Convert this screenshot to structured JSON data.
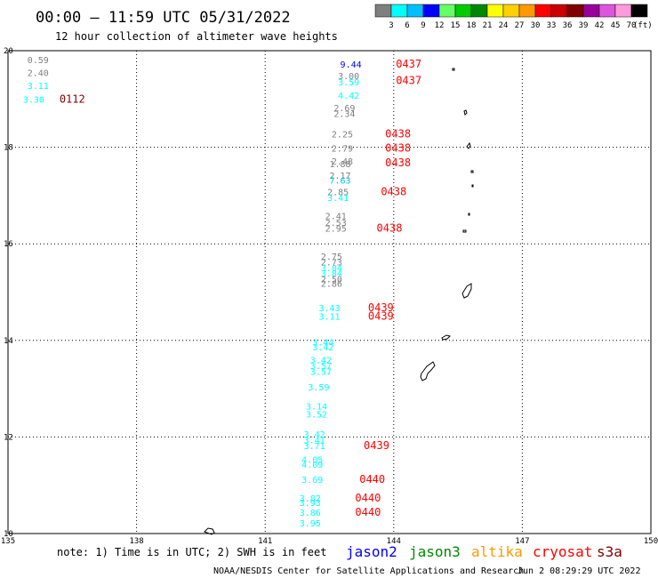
{
  "header": {
    "title": "00:00 – 11:59 UTC 05/31/2022",
    "subtitle": "12 hour collection of altimeter wave heights"
  },
  "legend": {
    "unit": "(ft)",
    "bins": [
      {
        "label": "3",
        "color": "#7f7f7f"
      },
      {
        "label": "6",
        "color": "#00ffff"
      },
      {
        "label": "9",
        "color": "#00bfff"
      },
      {
        "label": "12",
        "color": "#0000ff"
      },
      {
        "label": "15",
        "color": "#66ff66"
      },
      {
        "label": "18",
        "color": "#00cc00"
      },
      {
        "label": "21",
        "color": "#008800"
      },
      {
        "label": "24",
        "color": "#ffff00"
      },
      {
        "label": "27",
        "color": "#ffd000"
      },
      {
        "label": "30",
        "color": "#ff9900"
      },
      {
        "label": "33",
        "color": "#ff0000"
      },
      {
        "label": "36",
        "color": "#cc0000"
      },
      {
        "label": "39",
        "color": "#800000"
      },
      {
        "label": "42",
        "color": "#990099"
      },
      {
        "label": "45",
        "color": "#dd55dd"
      },
      {
        "label": "70",
        "color": "#ff99dd"
      }
    ],
    "last_color": "#000000"
  },
  "chart_data": {
    "type": "scatter",
    "xlim": [
      135,
      150
    ],
    "ylim": [
      10,
      20
    ],
    "x_ticks": [
      "135",
      "138",
      "141",
      "144",
      "147",
      "150"
    ],
    "y_ticks": [
      "10",
      "12",
      "14",
      "16",
      "18",
      "20"
    ],
    "grid": true,
    "points": [
      {
        "x": 135.45,
        "y": 19.82,
        "v": "0.59",
        "c": "#7f7f7f"
      },
      {
        "x": 135.45,
        "y": 19.55,
        "v": "2.40",
        "c": "#7f7f7f"
      },
      {
        "x": 135.45,
        "y": 19.28,
        "v": "3.11",
        "c": "#00ffff"
      },
      {
        "x": 135.35,
        "y": 19.0,
        "v": "3.30",
        "c": "#00ffff"
      },
      {
        "x": 142.75,
        "y": 19.72,
        "v": "9.44",
        "c": "#0000ff"
      },
      {
        "x": 142.7,
        "y": 19.48,
        "v": "3.00",
        "c": "#7f7f7f"
      },
      {
        "x": 142.7,
        "y": 19.36,
        "v": "3.59",
        "c": "#00ffff"
      },
      {
        "x": 142.7,
        "y": 19.08,
        "v": "4.42",
        "c": "#00ffff"
      },
      {
        "x": 142.6,
        "y": 18.82,
        "v": "2.69",
        "c": "#7f7f7f"
      },
      {
        "x": 142.6,
        "y": 18.7,
        "v": "2.34",
        "c": "#7f7f7f"
      },
      {
        "x": 142.55,
        "y": 18.28,
        "v": "2.25",
        "c": "#7f7f7f"
      },
      {
        "x": 142.55,
        "y": 17.98,
        "v": "2.79",
        "c": "#7f7f7f"
      },
      {
        "x": 142.55,
        "y": 17.72,
        "v": "2.48",
        "c": "#7f7f7f"
      },
      {
        "x": 142.5,
        "y": 17.66,
        "v": "1.88",
        "c": "#7f7f7f"
      },
      {
        "x": 142.5,
        "y": 17.42,
        "v": "2.17",
        "c": "#7f7f7f"
      },
      {
        "x": 142.5,
        "y": 17.32,
        "v": "7.63",
        "c": "#00bfff"
      },
      {
        "x": 142.45,
        "y": 17.08,
        "v": "2.85",
        "c": "#7f7f7f"
      },
      {
        "x": 142.45,
        "y": 16.96,
        "v": "3.41",
        "c": "#00ffff"
      },
      {
        "x": 142.4,
        "y": 16.58,
        "v": "2.41",
        "c": "#7f7f7f"
      },
      {
        "x": 142.4,
        "y": 16.45,
        "v": "2.53",
        "c": "#7f7f7f"
      },
      {
        "x": 142.4,
        "y": 16.33,
        "v": "2.95",
        "c": "#7f7f7f"
      },
      {
        "x": 142.3,
        "y": 15.75,
        "v": "2.75",
        "c": "#7f7f7f"
      },
      {
        "x": 142.3,
        "y": 15.63,
        "v": "2.73",
        "c": "#7f7f7f"
      },
      {
        "x": 142.3,
        "y": 15.51,
        "v": "3.04",
        "c": "#00ffff"
      },
      {
        "x": 142.3,
        "y": 15.4,
        "v": "3.84",
        "c": "#00ffff"
      },
      {
        "x": 142.3,
        "y": 15.28,
        "v": "2.50",
        "c": "#7f7f7f"
      },
      {
        "x": 142.3,
        "y": 15.18,
        "v": "2.86",
        "c": "#7f7f7f"
      },
      {
        "x": 142.25,
        "y": 14.68,
        "v": "3.43",
        "c": "#00ffff"
      },
      {
        "x": 142.25,
        "y": 14.5,
        "v": "3.11",
        "c": "#00ffff"
      },
      {
        "x": 142.1,
        "y": 13.97,
        "v": "3.44",
        "c": "#00ffff"
      },
      {
        "x": 142.1,
        "y": 13.87,
        "v": "3.42",
        "c": "#00ffff"
      },
      {
        "x": 142.05,
        "y": 13.6,
        "v": "3.42",
        "c": "#00ffff"
      },
      {
        "x": 142.05,
        "y": 13.48,
        "v": "3.57",
        "c": "#00ffff"
      },
      {
        "x": 142.05,
        "y": 13.36,
        "v": "3.57",
        "c": "#00ffff"
      },
      {
        "x": 142.0,
        "y": 13.04,
        "v": "3.59",
        "c": "#00ffff"
      },
      {
        "x": 141.95,
        "y": 12.64,
        "v": "3.14",
        "c": "#00ffff"
      },
      {
        "x": 141.95,
        "y": 12.48,
        "v": "3.52",
        "c": "#00ffff"
      },
      {
        "x": 141.9,
        "y": 12.06,
        "v": "3.42",
        "c": "#00ffff"
      },
      {
        "x": 141.9,
        "y": 11.94,
        "v": "3.41",
        "c": "#00ffff"
      },
      {
        "x": 141.9,
        "y": 11.82,
        "v": "3.71",
        "c": "#00ffff"
      },
      {
        "x": 141.85,
        "y": 11.54,
        "v": "4.05",
        "c": "#00ffff"
      },
      {
        "x": 141.85,
        "y": 11.44,
        "v": "4.09",
        "c": "#00ffff"
      },
      {
        "x": 141.85,
        "y": 11.12,
        "v": "3.69",
        "c": "#00ffff"
      },
      {
        "x": 141.8,
        "y": 10.74,
        "v": "3.82",
        "c": "#00ffff"
      },
      {
        "x": 141.8,
        "y": 10.64,
        "v": "3.93",
        "c": "#00ffff"
      },
      {
        "x": 141.8,
        "y": 10.44,
        "v": "3.86",
        "c": "#00ffff"
      },
      {
        "x": 141.8,
        "y": 10.22,
        "v": "3.95",
        "c": "#00ffff"
      }
    ],
    "pass_times": [
      {
        "x": 144.05,
        "y": 19.72,
        "t": "0437",
        "c": "#ff0000"
      },
      {
        "x": 144.05,
        "y": 19.38,
        "t": "0437",
        "c": "#ff0000"
      },
      {
        "x": 136.2,
        "y": 19.0,
        "t": "0112",
        "c": "#800000"
      },
      {
        "x": 143.8,
        "y": 18.28,
        "t": "0438",
        "c": "#ff0000"
      },
      {
        "x": 143.8,
        "y": 17.98,
        "t": "0438",
        "c": "#ff0000"
      },
      {
        "x": 143.8,
        "y": 17.68,
        "t": "0438",
        "c": "#ff0000"
      },
      {
        "x": 143.7,
        "y": 17.08,
        "t": "0438",
        "c": "#ff0000"
      },
      {
        "x": 143.6,
        "y": 16.33,
        "t": "0438",
        "c": "#ff0000"
      },
      {
        "x": 143.4,
        "y": 14.68,
        "t": "0439",
        "c": "#ff0000"
      },
      {
        "x": 143.4,
        "y": 14.5,
        "t": "0439",
        "c": "#ff0000"
      },
      {
        "x": 143.3,
        "y": 11.82,
        "t": "0439",
        "c": "#ff0000"
      },
      {
        "x": 143.2,
        "y": 11.12,
        "t": "0440",
        "c": "#ff0000"
      },
      {
        "x": 143.1,
        "y": 10.74,
        "t": "0440",
        "c": "#ff0000"
      },
      {
        "x": 143.1,
        "y": 10.44,
        "t": "0440",
        "c": "#ff0000"
      }
    ]
  },
  "footer": {
    "note": "note: 1) Time is in UTC; 2) SWH is in feet",
    "satellites": [
      {
        "name": "jason2",
        "color": "#0000ff"
      },
      {
        "name": "jason3",
        "color": "#008800"
      },
      {
        "name": "altika",
        "color": "#ff9900"
      },
      {
        "name": "cryosat",
        "color": "#ff0000"
      },
      {
        "name": "s3a",
        "color": "#800000"
      }
    ],
    "credit": "NOAA/NESDIS Center for Satellite Applications and Research",
    "timestamp": "Jun  2 08:29:29 UTC 2022"
  }
}
